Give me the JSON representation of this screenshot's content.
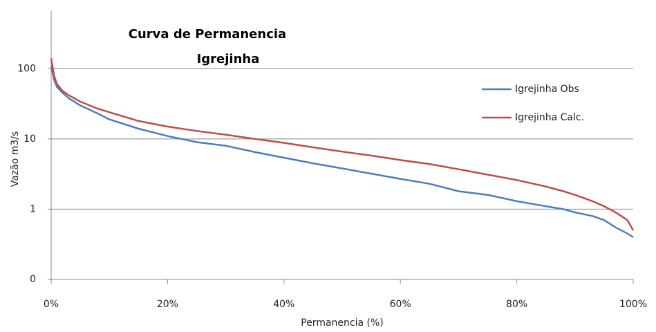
{
  "chart_data": {
    "type": "line",
    "title_lines": [
      "Curva de Permanencia",
      "Igrejinha"
    ],
    "xlabel": "Permanencia (%)",
    "ylabel": "Vazão m3/s",
    "log_y": true,
    "grid": true,
    "legend": "right",
    "xlim": [
      0,
      100
    ],
    "xticks": [
      {
        "value": 0,
        "label": "0%"
      },
      {
        "value": 20,
        "label": "20%"
      },
      {
        "value": 40,
        "label": "40%"
      },
      {
        "value": 60,
        "label": "60%"
      },
      {
        "value": 80,
        "label": "80%"
      },
      {
        "value": 100,
        "label": "100%"
      }
    ],
    "ylim": [
      0.1,
      676
    ],
    "yticks": [
      {
        "value": 0.1,
        "label": "0"
      },
      1,
      10,
      100
    ],
    "x": [
      0,
      0.5,
      1,
      2,
      3,
      5,
      8,
      10,
      15,
      20,
      25,
      30,
      35,
      40,
      45,
      50,
      55,
      60,
      65,
      70,
      75,
      80,
      85,
      88,
      90,
      93,
      95,
      97,
      99,
      100
    ],
    "series": [
      {
        "name": "Igrejinha Obs",
        "color": "#4a7ebb",
        "values": [
          110,
          70,
          55,
          45,
          38,
          30,
          23,
          19,
          14,
          11,
          9,
          8,
          6.5,
          5.4,
          4.5,
          3.8,
          3.2,
          2.7,
          2.3,
          1.8,
          1.6,
          1.3,
          1.1,
          1.0,
          0.9,
          0.8,
          0.7,
          0.55,
          0.45,
          0.4
        ]
      },
      {
        "name": "Igrejinha Calc.",
        "color": "#be4b48",
        "values": [
          140,
          80,
          60,
          48,
          42,
          34,
          27,
          24,
          18,
          15,
          13,
          11.5,
          10,
          8.8,
          7.6,
          6.6,
          5.8,
          5.0,
          4.4,
          3.7,
          3.1,
          2.6,
          2.1,
          1.8,
          1.6,
          1.3,
          1.1,
          0.9,
          0.7,
          0.5
        ]
      }
    ]
  }
}
